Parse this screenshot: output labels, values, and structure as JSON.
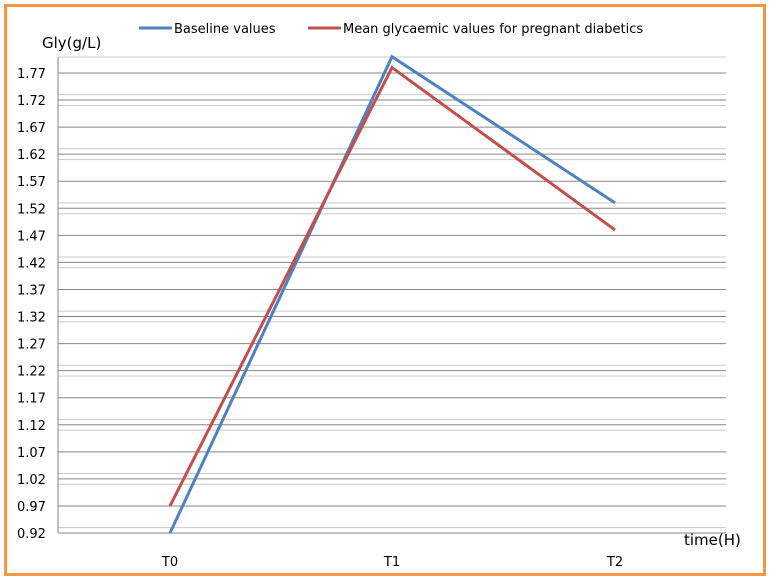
{
  "chart_data": {
    "type": "line",
    "title": "",
    "xlabel": "time(H)",
    "ylabel": "Gly(g/L)",
    "categories": [
      "T0",
      "T1",
      "T2"
    ],
    "series": [
      {
        "name": "Baseline values",
        "color": "#4f81bd",
        "values": [
          0.92,
          1.8,
          1.53
        ]
      },
      {
        "name": "Mean glycaemic values for pregnant diabetics",
        "color": "#c0504d",
        "values": [
          0.97,
          1.78,
          1.48
        ]
      }
    ],
    "yticks": [
      "0.92",
      "0.97",
      "1.02",
      "1.07",
      "1.12",
      "1.17",
      "1.22",
      "1.27",
      "1.32",
      "1.37",
      "1.42",
      "1.47",
      "1.52",
      "1.57",
      "1.62",
      "1.67",
      "1.72",
      "1.77"
    ],
    "ylim": [
      0.92,
      1.8
    ],
    "grid": true,
    "legend_position": "top",
    "border_color": "#f79646"
  }
}
